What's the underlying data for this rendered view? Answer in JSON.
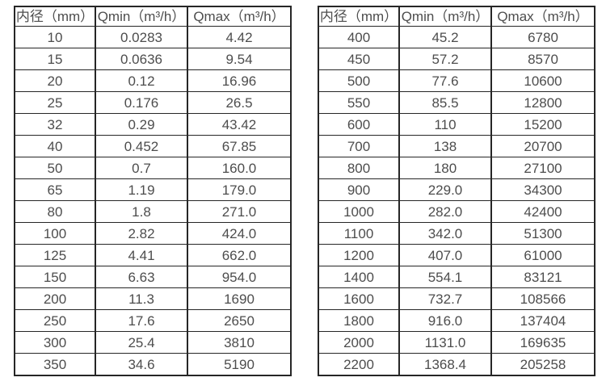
{
  "tables": [
    {
      "name": "flow-table-small-diameters",
      "headers": [
        "内径（mm）",
        "Qmin（m³/h）",
        "Qmax（m³/h）"
      ],
      "rows": [
        [
          "10",
          "0.0283",
          "4.42"
        ],
        [
          "15",
          "0.0636",
          "9.54"
        ],
        [
          "20",
          "0.12",
          "16.96"
        ],
        [
          "25",
          "0.176",
          "26.5"
        ],
        [
          "32",
          "0.29",
          "43.42"
        ],
        [
          "40",
          "0.452",
          "67.85"
        ],
        [
          "50",
          "0.7",
          "160.0"
        ],
        [
          "65",
          "1.19",
          "179.0"
        ],
        [
          "80",
          "1.8",
          "271.0"
        ],
        [
          "100",
          "2.82",
          "424.0"
        ],
        [
          "125",
          "4.41",
          "662.0"
        ],
        [
          "150",
          "6.63",
          "954.0"
        ],
        [
          "200",
          "11.3",
          "1690"
        ],
        [
          "250",
          "17.6",
          "2650"
        ],
        [
          "300",
          "25.4",
          "3810"
        ],
        [
          "350",
          "34.6",
          "5190"
        ]
      ]
    },
    {
      "name": "flow-table-large-diameters",
      "headers": [
        "内径（mm）",
        "Qmin（m³/h）",
        "Qmax（m³/h）"
      ],
      "rows": [
        [
          "400",
          "45.2",
          "6780"
        ],
        [
          "450",
          "57.2",
          "8570"
        ],
        [
          "500",
          "77.6",
          "10600"
        ],
        [
          "550",
          "85.5",
          "12800"
        ],
        [
          "600",
          "110",
          "15200"
        ],
        [
          "700",
          "138",
          "20700"
        ],
        [
          "800",
          "180",
          "27100"
        ],
        [
          "900",
          "229.0",
          "34300"
        ],
        [
          "1000",
          "282.0",
          "42400"
        ],
        [
          "1100",
          "342.0",
          "51300"
        ],
        [
          "1200",
          "407.0",
          "61000"
        ],
        [
          "1400",
          "554.1",
          "83121"
        ],
        [
          "1600",
          "732.7",
          "108566"
        ],
        [
          "1800",
          "916.0",
          "137404"
        ],
        [
          "2000",
          "1131.0",
          "169635"
        ],
        [
          "2200",
          "1368.4",
          "205258"
        ]
      ]
    }
  ]
}
